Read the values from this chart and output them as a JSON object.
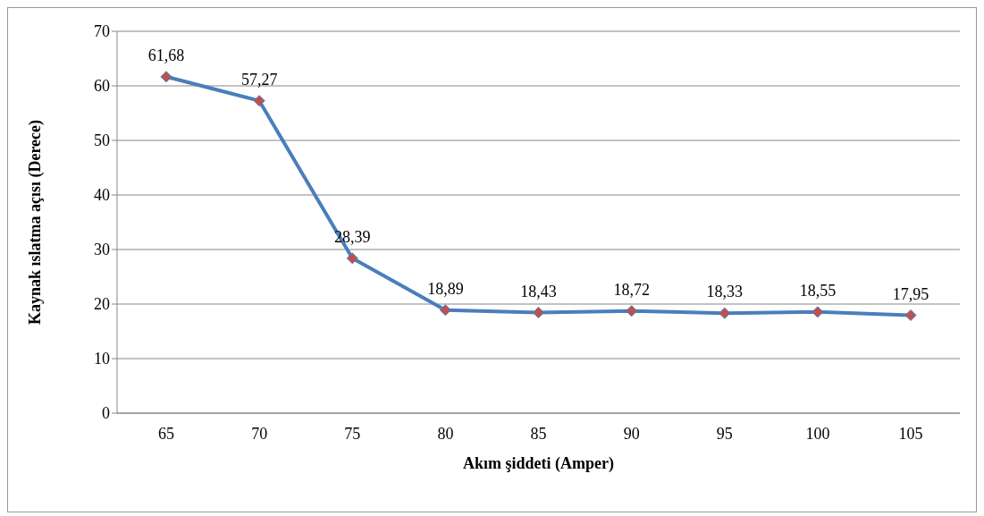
{
  "chart_data": {
    "type": "line",
    "xlabel": "Akım şiddeti (Amper)",
    "ylabel": "Kaynak ıslatma açısı (Derece)",
    "categories": [
      "65",
      "70",
      "75",
      "80",
      "85",
      "90",
      "95",
      "100",
      "105"
    ],
    "series": [
      {
        "color": "#4a7ebb",
        "colors": [
          "#c0504d",
          "#c0504d",
          "#c0504d",
          "#c0504d",
          "#c0504d",
          "#c0504d",
          "#c0504d",
          "#c0504d",
          "#c0504d"
        ],
        "values": [
          61.68,
          57.27,
          28.39,
          18.89,
          18.43,
          18.72,
          18.33,
          18.55,
          17.95
        ],
        "value_labels": [
          "61,68",
          "57,27",
          "28,39",
          "18,89",
          "18,43",
          "18,72",
          "18,33",
          "18,55",
          "17,95"
        ]
      }
    ],
    "ylim": [
      0,
      70
    ],
    "yticks": [
      0,
      10,
      20,
      30,
      40,
      50,
      60,
      70
    ],
    "grid": "y",
    "marker": "diamond",
    "line_style": "solid"
  }
}
